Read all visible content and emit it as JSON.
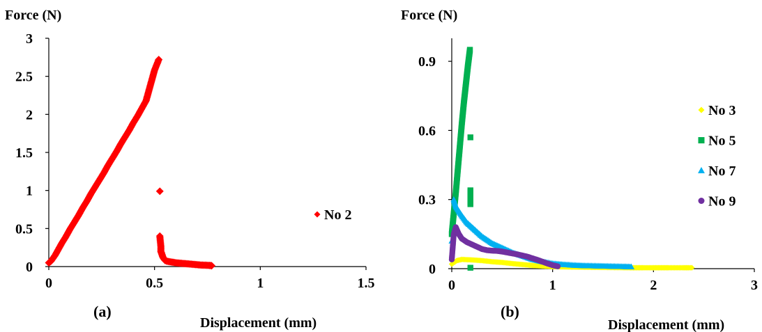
{
  "chart_data": [
    {
      "type": "scatter",
      "panel_label": "(a)",
      "ylabel": "Force (N)",
      "xlabel": "Displacement (mm)",
      "xlim": [
        0,
        1.5
      ],
      "ylim": [
        0,
        3
      ],
      "xticks": [
        "0",
        "0.5",
        "1",
        "1.5"
      ],
      "yticks": [
        "0",
        "0.5",
        "1",
        "1.5",
        "2",
        "2.5",
        "3"
      ],
      "legend_position": "right",
      "series": [
        {
          "name": "No 2",
          "marker": "diamond",
          "color": "#ff0000",
          "points": [
            [
              0.0,
              0.05
            ],
            [
              0.01,
              0.07
            ],
            [
              0.02,
              0.11
            ],
            [
              0.03,
              0.15
            ],
            [
              0.04,
              0.2
            ],
            [
              0.05,
              0.25
            ],
            [
              0.06,
              0.3
            ],
            [
              0.08,
              0.39
            ],
            [
              0.1,
              0.49
            ],
            [
              0.12,
              0.58
            ],
            [
              0.14,
              0.67
            ],
            [
              0.16,
              0.77
            ],
            [
              0.18,
              0.86
            ],
            [
              0.2,
              0.96
            ],
            [
              0.22,
              1.05
            ],
            [
              0.24,
              1.14
            ],
            [
              0.26,
              1.23
            ],
            [
              0.28,
              1.33
            ],
            [
              0.3,
              1.42
            ],
            [
              0.32,
              1.51
            ],
            [
              0.34,
              1.61
            ],
            [
              0.36,
              1.7
            ],
            [
              0.38,
              1.79
            ],
            [
              0.4,
              1.89
            ],
            [
              0.42,
              1.98
            ],
            [
              0.44,
              2.08
            ],
            [
              0.46,
              2.18
            ],
            [
              0.48,
              2.38
            ],
            [
              0.5,
              2.58
            ],
            [
              0.52,
              2.72
            ],
            [
              0.525,
              0.99
            ],
            [
              0.525,
              0.4
            ],
            [
              0.53,
              0.26
            ],
            [
              0.53,
              0.2
            ],
            [
              0.535,
              0.16
            ],
            [
              0.54,
              0.12
            ],
            [
              0.545,
              0.1
            ],
            [
              0.55,
              0.08
            ],
            [
              0.56,
              0.07
            ],
            [
              0.58,
              0.06
            ],
            [
              0.6,
              0.05
            ],
            [
              0.62,
              0.045
            ],
            [
              0.64,
              0.04
            ],
            [
              0.66,
              0.035
            ],
            [
              0.68,
              0.03
            ],
            [
              0.7,
              0.025
            ],
            [
              0.72,
              0.02
            ],
            [
              0.74,
              0.018
            ],
            [
              0.76,
              0.015
            ],
            [
              0.77,
              0.012
            ]
          ]
        }
      ]
    },
    {
      "type": "scatter",
      "panel_label": "(b)",
      "ylabel": "Force (N)",
      "xlabel": "Displacement (mm)",
      "xlim": [
        0,
        3
      ],
      "ylim": [
        0,
        1.0
      ],
      "xticks": [
        "0",
        "1",
        "2",
        "3"
      ],
      "yticks": [
        "0",
        "0.3",
        "0.6",
        "0.9"
      ],
      "legend_position": "right",
      "series": [
        {
          "name": "No 3",
          "marker": "diamond",
          "color": "#ffff00",
          "points": [
            [
              0.0,
              0.02
            ],
            [
              0.05,
              0.035
            ],
            [
              0.1,
              0.04
            ],
            [
              0.2,
              0.038
            ],
            [
              0.3,
              0.035
            ],
            [
              0.4,
              0.03
            ],
            [
              0.5,
              0.027
            ],
            [
              0.6,
              0.022
            ],
            [
              0.7,
              0.018
            ],
            [
              0.8,
              0.014
            ],
            [
              0.9,
              0.011
            ],
            [
              1.0,
              0.009
            ],
            [
              1.2,
              0.007
            ],
            [
              1.4,
              0.006
            ],
            [
              1.6,
              0.005
            ],
            [
              1.8,
              0.004
            ],
            [
              1.85,
              0.004
            ],
            [
              1.9,
              0.004
            ],
            [
              2.0,
              0.004
            ],
            [
              2.05,
              0.004
            ],
            [
              2.1,
              0.004
            ],
            [
              2.15,
              0.004
            ],
            [
              2.3,
              0.004
            ],
            [
              2.35,
              0.004
            ],
            [
              2.38,
              0.004
            ]
          ]
        },
        {
          "name": "No 5",
          "marker": "square",
          "color": "#00b050",
          "points": [
            [
              0.0,
              0.15
            ],
            [
              0.02,
              0.24
            ],
            [
              0.04,
              0.33
            ],
            [
              0.06,
              0.43
            ],
            [
              0.08,
              0.53
            ],
            [
              0.1,
              0.63
            ],
            [
              0.12,
              0.72
            ],
            [
              0.14,
              0.8
            ],
            [
              0.16,
              0.88
            ],
            [
              0.18,
              0.95
            ],
            [
              0.185,
              0.57
            ],
            [
              0.185,
              0.34
            ],
            [
              0.185,
              0.28
            ],
            [
              0.185,
              0.004
            ]
          ]
        },
        {
          "name": "No 7",
          "marker": "triangle",
          "color": "#00b0f0",
          "points": [
            [
              0.0,
              0.12
            ],
            [
              0.02,
              0.3
            ],
            [
              0.04,
              0.27
            ],
            [
              0.07,
              0.25
            ],
            [
              0.1,
              0.23
            ],
            [
              0.15,
              0.2
            ],
            [
              0.2,
              0.18
            ],
            [
              0.25,
              0.16
            ],
            [
              0.3,
              0.14
            ],
            [
              0.35,
              0.125
            ],
            [
              0.4,
              0.11
            ],
            [
              0.5,
              0.09
            ],
            [
              0.6,
              0.07
            ],
            [
              0.7,
              0.055
            ],
            [
              0.8,
              0.04
            ],
            [
              0.9,
              0.03
            ],
            [
              1.0,
              0.022
            ],
            [
              1.1,
              0.018
            ],
            [
              1.2,
              0.015
            ],
            [
              1.3,
              0.013
            ],
            [
              1.4,
              0.012
            ],
            [
              1.5,
              0.011
            ],
            [
              1.6,
              0.01
            ],
            [
              1.7,
              0.009
            ],
            [
              1.78,
              0.008
            ]
          ]
        },
        {
          "name": "No 9",
          "marker": "circle",
          "color": "#7030a0",
          "points": [
            [
              0.0,
              0.04
            ],
            [
              0.02,
              0.15
            ],
            [
              0.04,
              0.18
            ],
            [
              0.07,
              0.15
            ],
            [
              0.1,
              0.13
            ],
            [
              0.15,
              0.115
            ],
            [
              0.2,
              0.105
            ],
            [
              0.25,
              0.095
            ],
            [
              0.3,
              0.085
            ],
            [
              0.35,
              0.08
            ],
            [
              0.4,
              0.078
            ],
            [
              0.45,
              0.077
            ],
            [
              0.5,
              0.074
            ],
            [
              0.55,
              0.07
            ],
            [
              0.6,
              0.066
            ],
            [
              0.65,
              0.062
            ],
            [
              0.7,
              0.057
            ],
            [
              0.75,
              0.052
            ],
            [
              0.8,
              0.045
            ],
            [
              0.85,
              0.038
            ],
            [
              0.9,
              0.03
            ],
            [
              0.95,
              0.022
            ],
            [
              1.0,
              0.015
            ],
            [
              1.05,
              0.01
            ]
          ]
        }
      ]
    }
  ]
}
